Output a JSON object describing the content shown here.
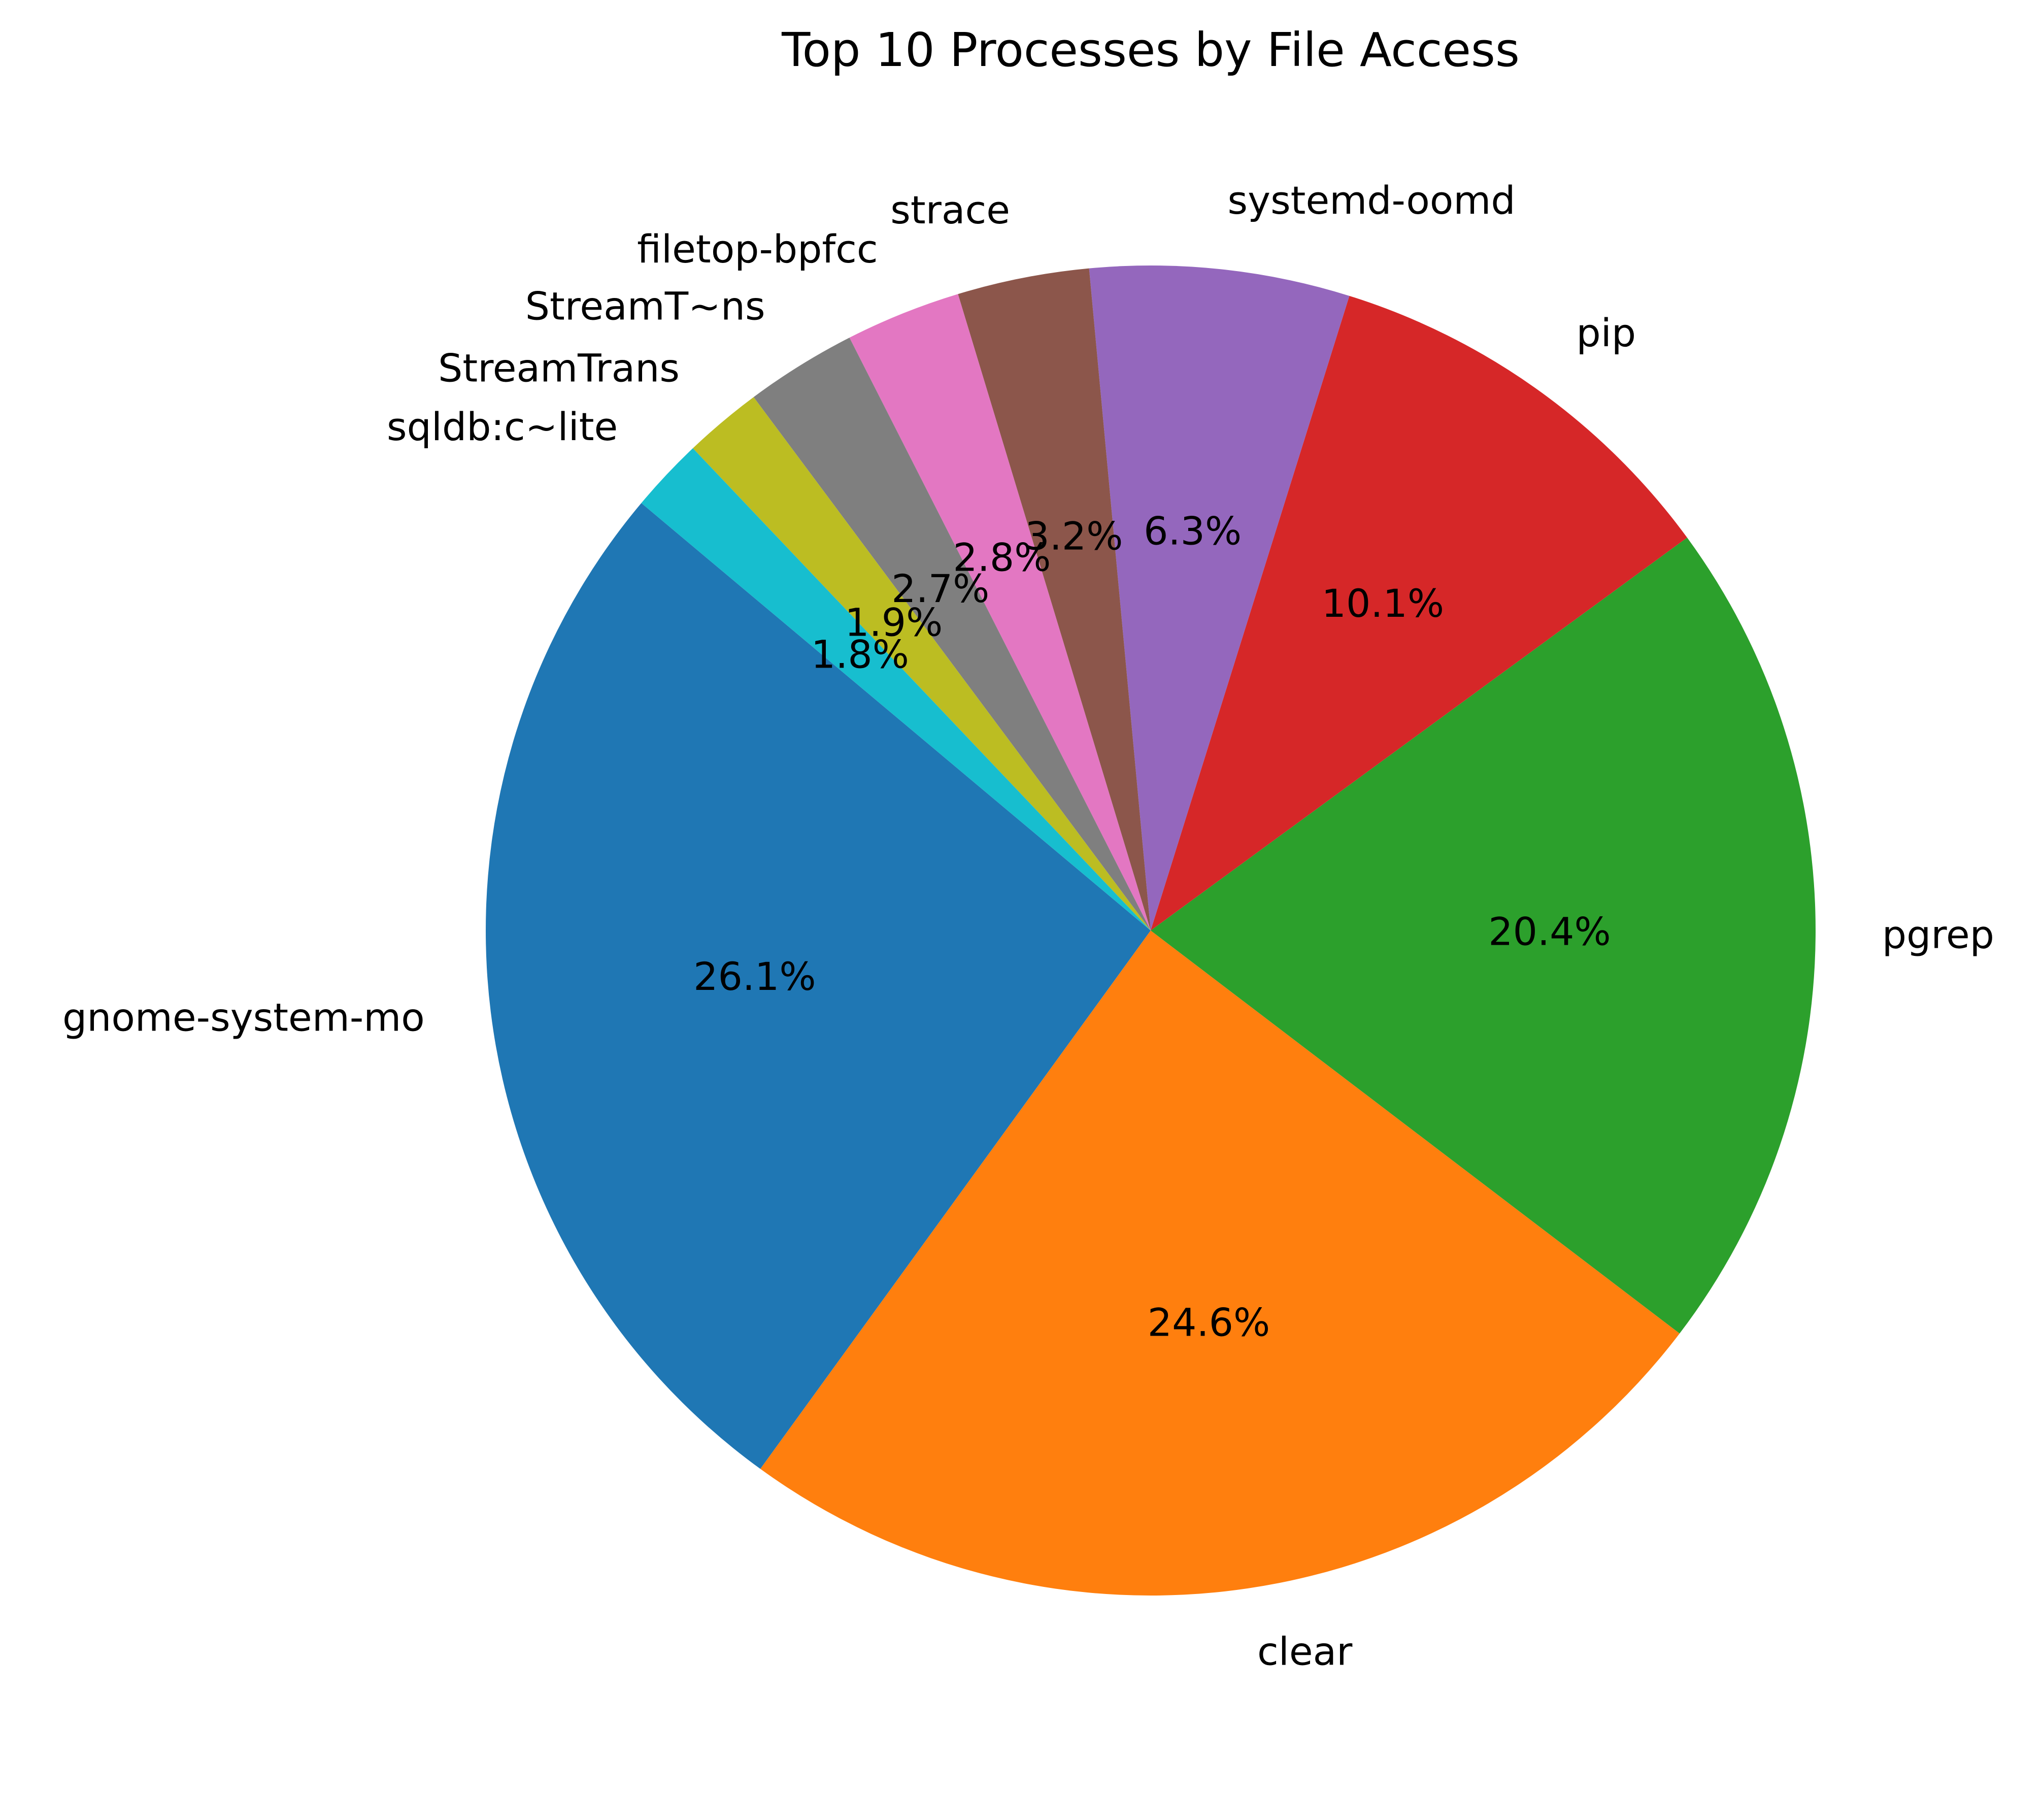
{
  "chart_data": {
    "type": "pie",
    "title": "Top 10 Processes by File Access",
    "start_angle_deg": 140,
    "direction": "counterclockwise",
    "slices": [
      {
        "label": "gnome-system-mo",
        "value": 26.1,
        "pct_label": "26.1%",
        "color": "#1f77b4"
      },
      {
        "label": "clear",
        "value": 24.6,
        "pct_label": "24.6%",
        "color": "#ff7f0e"
      },
      {
        "label": "pgrep",
        "value": 20.4,
        "pct_label": "20.4%",
        "color": "#2ca02c"
      },
      {
        "label": "pip",
        "value": 10.1,
        "pct_label": "10.1%",
        "color": "#d62728"
      },
      {
        "label": "systemd-oomd",
        "value": 6.3,
        "pct_label": "6.3%",
        "color": "#9467bd"
      },
      {
        "label": "strace",
        "value": 3.2,
        "pct_label": "3.2%",
        "color": "#8c564b"
      },
      {
        "label": "filetop-bpfcc",
        "value": 2.8,
        "pct_label": "2.8%",
        "color": "#e377c2"
      },
      {
        "label": "StreamT~ns",
        "value": 2.7,
        "pct_label": "2.7%",
        "color": "#7f7f7f"
      },
      {
        "label": "StreamTrans",
        "value": 1.9,
        "pct_label": "1.9%",
        "color": "#bcbd22"
      },
      {
        "label": "sqldb:c~lite",
        "value": 1.8,
        "pct_label": "1.8%",
        "color": "#17becf"
      }
    ]
  }
}
